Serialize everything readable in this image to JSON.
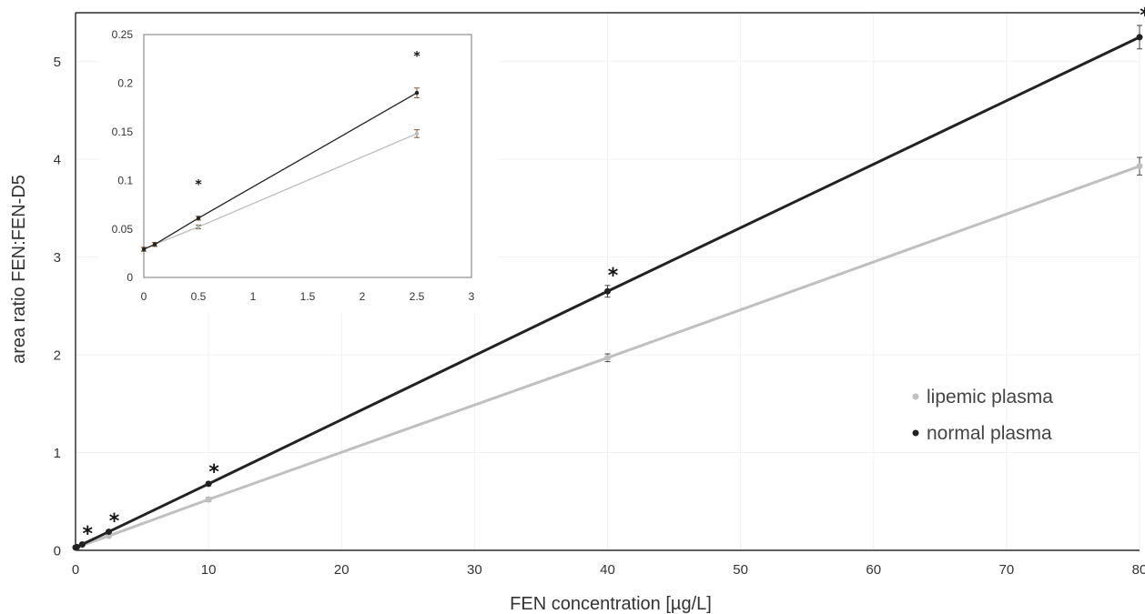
{
  "chart_data": [
    {
      "type": "line",
      "title": "",
      "xlabel": "FEN concentration [µg/L]",
      "ylabel": "area ratio FEN:FEN-D5",
      "xlim": [
        0,
        80
      ],
      "ylim": [
        0,
        5.5
      ],
      "x_ticks": [
        "0",
        "10",
        "20",
        "30",
        "40",
        "50",
        "60",
        "70",
        "80"
      ],
      "y_ticks": [
        "0",
        "1",
        "2",
        "3",
        "4",
        "5"
      ],
      "grid": "on",
      "legend_position": "right",
      "series": [
        {
          "name": "lipemic plasma",
          "color": "#c0c0c0",
          "x": [
            0,
            0.1,
            0.5,
            2.5,
            10,
            40,
            80
          ],
          "y": [
            0.029,
            0.034,
            0.052,
            0.148,
            0.52,
            1.97,
            3.93
          ],
          "err": [
            0.002,
            0.002,
            0.002,
            0.004,
            0.02,
            0.04,
            0.09
          ]
        },
        {
          "name": "normal plasma",
          "color": "#222222",
          "x": [
            0,
            0.1,
            0.5,
            2.5,
            10,
            40,
            80
          ],
          "y": [
            0.029,
            0.034,
            0.061,
            0.19,
            0.68,
            2.65,
            5.25
          ],
          "err": [
            0.002,
            0.002,
            0.002,
            0.005,
            0.02,
            0.06,
            0.12
          ]
        }
      ],
      "significance_marker": "*",
      "significance_x": [
        0.5,
        2.5,
        10,
        40,
        80
      ]
    },
    {
      "type": "line",
      "title": "",
      "xlabel": "",
      "ylabel": "",
      "xlim": [
        0,
        3
      ],
      "ylim": [
        0,
        0.25
      ],
      "x_ticks": [
        "0",
        "0.5",
        "1",
        "1.5",
        "2",
        "2.5",
        "3"
      ],
      "y_ticks": [
        "0",
        "0.05",
        "0.1",
        "0.15",
        "0.2",
        "0.25"
      ],
      "grid": "off",
      "series": [
        {
          "color": "#bbbbbb",
          "x": [
            0,
            0.1,
            0.5,
            2.5
          ],
          "y": [
            0.029,
            0.034,
            0.052,
            0.148
          ],
          "err": [
            0.002,
            0.002,
            0.002,
            0.004
          ]
        },
        {
          "color": "#222222",
          "x": [
            0,
            0.1,
            0.5,
            2.5
          ],
          "y": [
            0.029,
            0.034,
            0.061,
            0.19
          ],
          "err": [
            0.002,
            0.002,
            0.002,
            0.005
          ]
        }
      ],
      "significance_marker": "*",
      "significance_x": [
        0.5,
        2.5
      ]
    }
  ]
}
